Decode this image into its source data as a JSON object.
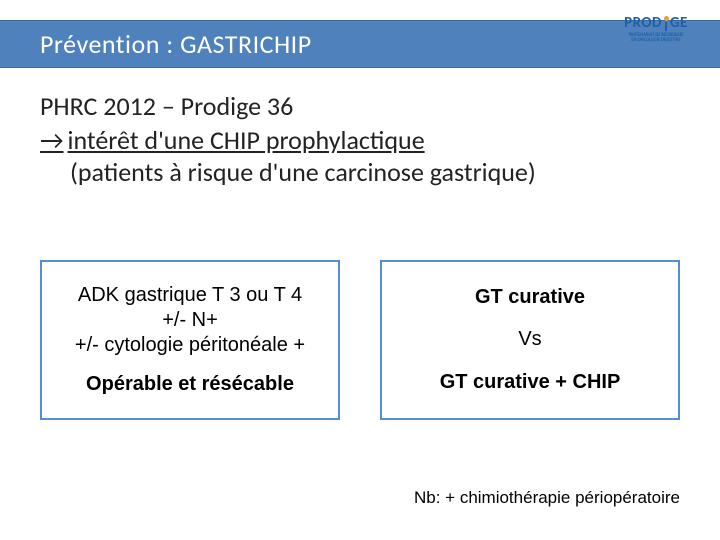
{
  "header": {
    "title": "Prévention :  GASTRICHIP",
    "bar_color": "#4f81bd"
  },
  "logo": {
    "word_prefix": "PROD",
    "word_suffix": "GE",
    "brand_color": "#1f5ea8",
    "accent_color": "#e8a23a",
    "subtitle_l1": "PARTENARIAT DE RECHERCHE",
    "subtitle_l2": "EN ONCOLOGIE DIGESTIVE"
  },
  "intro": {
    "line1": "PHRC 2012 – Prodige 36",
    "arrow": "→",
    "line2": "intérêt d'une CHIP prophylactique",
    "line3": "(patients à risque d'une carcinose gastrique)"
  },
  "left_box": {
    "l1": "ADK gastrique T 3 ou T 4",
    "l2": "+/- N+",
    "l3": "+/- cytologie péritonéale +",
    "l4": "Opérable et résécable",
    "border_color": "#558ed5"
  },
  "right_box": {
    "l1": "GT curative",
    "l2": "Vs",
    "l3": "GT curative + CHIP",
    "border_color": "#558ed5"
  },
  "footnote": "Nb: + chimiothérapie périopératoire"
}
